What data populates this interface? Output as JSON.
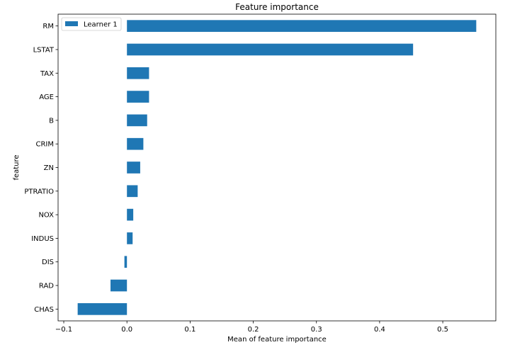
{
  "chart_data": {
    "type": "bar",
    "orientation": "horizontal",
    "title": "Feature importance",
    "xlabel": "Mean of feature importance",
    "ylabel": "feature",
    "categories": [
      "RM",
      "LSTAT",
      "TAX",
      "AGE",
      "B",
      "CRIM",
      "ZN",
      "PTRATIO",
      "NOX",
      "INDUS",
      "DIS",
      "RAD",
      "CHAS"
    ],
    "series": [
      {
        "name": "Learner 1",
        "values": [
          0.553,
          0.453,
          0.035,
          0.035,
          0.032,
          0.026,
          0.021,
          0.017,
          0.01,
          0.009,
          -0.004,
          -0.026,
          -0.078
        ]
      }
    ],
    "xlim": [
      -0.109,
      0.584
    ],
    "xticks": [
      -0.1,
      0.0,
      0.1,
      0.2,
      0.3,
      0.4,
      0.5
    ],
    "xtick_labels": [
      "−0.1",
      "0.0",
      "0.1",
      "0.2",
      "0.3",
      "0.4",
      "0.5"
    ],
    "grid": false,
    "legend_position": "top-left",
    "colors": {
      "bar": "#1f77b4"
    }
  }
}
